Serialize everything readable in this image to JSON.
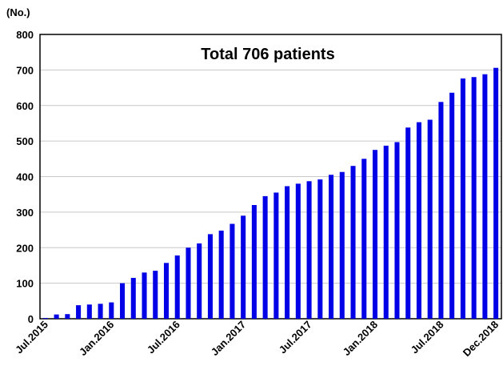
{
  "chart_data": {
    "type": "bar",
    "title": "Total 706 patients",
    "y_label": "(No.)",
    "categories": [
      "Jul.2015",
      null,
      null,
      null,
      null,
      null,
      "Jan.2016",
      null,
      null,
      null,
      null,
      null,
      "Jul.2016",
      null,
      null,
      null,
      null,
      null,
      "Jan.2017",
      null,
      null,
      null,
      null,
      null,
      "Jul.2017",
      null,
      null,
      null,
      null,
      null,
      "Jan.2018",
      null,
      null,
      null,
      null,
      null,
      "Jul.2018",
      null,
      null,
      null,
      null,
      "Dec.2018"
    ],
    "values": [
      2,
      12,
      13,
      38,
      40,
      42,
      46,
      100,
      115,
      130,
      135,
      157,
      178,
      200,
      212,
      238,
      248,
      267,
      290,
      320,
      345,
      355,
      373,
      380,
      387,
      392,
      405,
      413,
      430,
      450,
      475,
      487,
      497,
      538,
      553,
      560,
      610,
      636,
      676,
      680,
      688,
      706
    ],
    "color": "#0000e6",
    "ylim": [
      0,
      800
    ],
    "yticks": [
      0,
      100,
      200,
      300,
      400,
      500,
      600,
      700,
      800
    ],
    "grid": true
  }
}
